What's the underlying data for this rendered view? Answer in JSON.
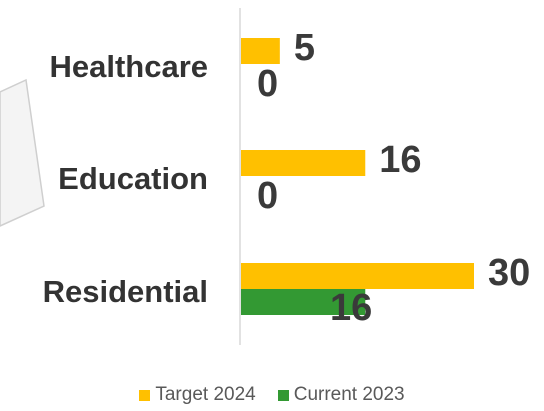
{
  "chart_data": {
    "type": "bar",
    "orientation": "horizontal",
    "categories": [
      "Healthcare",
      "Education",
      "Residential"
    ],
    "series": [
      {
        "name": "Target 2024",
        "values": [
          5,
          16,
          30
        ],
        "color": "#FFC000"
      },
      {
        "name": "Current 2023",
        "values": [
          0,
          0,
          16
        ],
        "color": "#339933"
      }
    ],
    "xlim": [
      0,
      30
    ],
    "grid": false,
    "legend": "bottom",
    "data_labels": true
  }
}
